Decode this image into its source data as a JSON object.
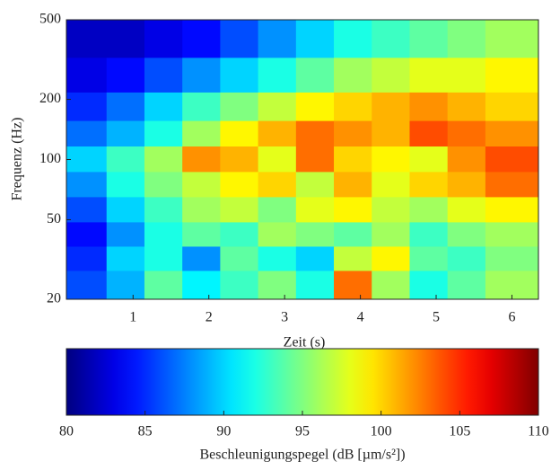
{
  "chart_data": {
    "type": "heatmap",
    "x_label": "Zeit (s)",
    "y_label": "Frequenz (Hz)",
    "x": [
      0.4,
      0.9,
      1.4,
      1.9,
      2.4,
      2.9,
      3.4,
      3.9,
      4.4,
      4.9,
      5.4,
      5.9
    ],
    "y": [
      400,
      260,
      180,
      135,
      100,
      75,
      56,
      42,
      32,
      24
    ],
    "z": [
      [
        82,
        82,
        83,
        84,
        86,
        88,
        90,
        92,
        93,
        94,
        95,
        96
      ],
      [
        83,
        84,
        86,
        88,
        90,
        92,
        94,
        96,
        97,
        98,
        98,
        99
      ],
      [
        85,
        87,
        90,
        93,
        95,
        97,
        99,
        100,
        101,
        102,
        101,
        100
      ],
      [
        87,
        89,
        92,
        96,
        99,
        101,
        103,
        102,
        101,
        104,
        103,
        102
      ],
      [
        90,
        93,
        96,
        102,
        101,
        98,
        103,
        100,
        99,
        98,
        102,
        104
      ],
      [
        88,
        92,
        95,
        97,
        99,
        100,
        97,
        101,
        98,
        100,
        101,
        103
      ],
      [
        86,
        90,
        93,
        96,
        97,
        95,
        98,
        99,
        97,
        96,
        98,
        99
      ],
      [
        84,
        88,
        92,
        94,
        93,
        96,
        95,
        94,
        96,
        93,
        95,
        96
      ],
      [
        85,
        90,
        92,
        88,
        94,
        92,
        90,
        97,
        99,
        94,
        93,
        95
      ],
      [
        86,
        89,
        94,
        91,
        93,
        95,
        92,
        103,
        96,
        92,
        94,
        96
      ]
    ],
    "xlim": [
      0.12,
      6.35
    ],
    "xticks": [
      1,
      2,
      3,
      4,
      5,
      6
    ],
    "ylim": [
      20,
      500
    ],
    "yticks": [
      20,
      50,
      100,
      200,
      500
    ],
    "y_scale": "log",
    "colormap": "jet",
    "colorbar_label": "Beschleunigungspegel (dB [µm/s²])",
    "clim": [
      80,
      110
    ],
    "cticks": [
      80,
      85,
      90,
      95,
      100,
      105,
      110
    ]
  }
}
